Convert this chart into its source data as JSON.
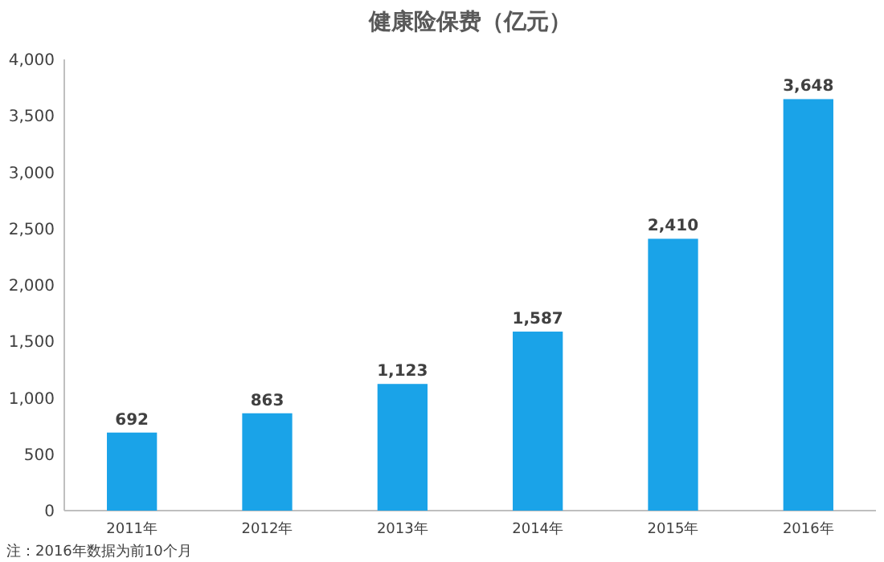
{
  "chart_data": {
    "type": "bar",
    "title": "健康险保费（亿元）",
    "categories": [
      "2011年",
      "2012年",
      "2013年",
      "2014年",
      "2015年",
      "2016年"
    ],
    "values": [
      692,
      863,
      1123,
      1587,
      2410,
      3648
    ],
    "value_labels": [
      "692",
      "863",
      "1,123",
      "1,587",
      "2,410",
      "3,648"
    ],
    "color": "#1aa3e8",
    "ylim": [
      0,
      4000
    ],
    "yticks": [
      {
        "value": 0,
        "label": "0"
      },
      {
        "value": 500,
        "label": "500"
      },
      {
        "value": 1000,
        "label": "1,000"
      },
      {
        "value": 1500,
        "label": "1,500"
      },
      {
        "value": 2000,
        "label": "2,000"
      },
      {
        "value": 2500,
        "label": "2,500"
      },
      {
        "value": 3000,
        "label": "3,000"
      },
      {
        "value": 3500,
        "label": "3,500"
      },
      {
        "value": 4000,
        "label": "4,000"
      }
    ],
    "grid": false,
    "annotations": [
      "注：2016年数据为前10个月"
    ]
  }
}
